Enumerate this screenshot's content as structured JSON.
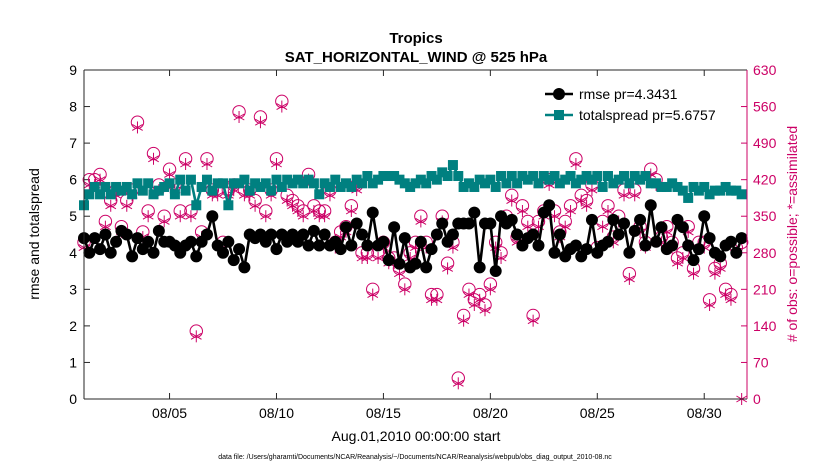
{
  "chart_data": {
    "type": "line",
    "title": "Tropics",
    "subtitle": "SAT_HORIZONTAL_WIND @ 525 hPa",
    "xlabel": "Aug.01,2010 00:00:00 start",
    "ylabel": "rmse and totalspread",
    "y2label": "# of obs: o=possible; *=assimilated",
    "footer": "data file: /Users/gharamti/Documents/NCAR/Reanalysis/~/Documents/NCAR/Reanalysis/webpub/obs_diag_output_2010-08.nc",
    "xlim": [
      1,
      32
    ],
    "ylim": [
      0,
      9
    ],
    "y2lim": [
      0,
      630
    ],
    "x_ticks": [
      5,
      10,
      15,
      20,
      25,
      30
    ],
    "x_tick_labels": [
      "08/05",
      "08/10",
      "08/15",
      "08/20",
      "08/25",
      "08/30"
    ],
    "y_ticks": [
      0,
      1,
      2,
      3,
      4,
      5,
      6,
      7,
      8,
      9
    ],
    "y_tick_labels": [
      "0",
      "1",
      "2",
      "3",
      "4",
      "5",
      "6",
      "7",
      "8",
      "9"
    ],
    "y2_ticks": [
      0,
      70,
      140,
      210,
      280,
      350,
      420,
      490,
      560,
      630
    ],
    "y2_tick_labels": [
      "0",
      "70",
      "140",
      "210",
      "280",
      "350",
      "420",
      "490",
      "560",
      "630"
    ],
    "colors": {
      "rmse": "#000000",
      "totalspread": "#008080",
      "obs": "#cc0066"
    },
    "legend_position": "top-right",
    "series": [
      {
        "name": "rmse pr=4.3431",
        "key": "rmse",
        "x": [
          1.0,
          1.25,
          1.5,
          1.75,
          2.0,
          2.25,
          2.5,
          2.75,
          3.0,
          3.25,
          3.5,
          3.75,
          4.0,
          4.25,
          4.5,
          4.75,
          5.0,
          5.25,
          5.5,
          5.75,
          6.0,
          6.25,
          6.5,
          6.75,
          7.0,
          7.25,
          7.5,
          7.75,
          8.0,
          8.25,
          8.5,
          8.75,
          9.0,
          9.25,
          9.5,
          9.75,
          10.0,
          10.25,
          10.5,
          10.75,
          11.0,
          11.25,
          11.5,
          11.75,
          12.0,
          12.25,
          12.5,
          12.75,
          13.0,
          13.25,
          13.5,
          13.75,
          14.0,
          14.25,
          14.5,
          14.75,
          15.0,
          15.25,
          15.5,
          15.75,
          16.0,
          16.25,
          16.5,
          16.75,
          17.0,
          17.25,
          17.5,
          17.75,
          18.0,
          18.25,
          18.5,
          18.75,
          19.0,
          19.25,
          19.5,
          19.75,
          20.0,
          20.25,
          20.5,
          20.75,
          21.0,
          21.25,
          21.5,
          21.75,
          22.0,
          22.25,
          22.5,
          22.75,
          23.0,
          23.25,
          23.5,
          23.75,
          24.0,
          24.25,
          24.5,
          24.75,
          25.0,
          25.25,
          25.5,
          25.75,
          26.0,
          26.25,
          26.5,
          26.75,
          27.0,
          27.25,
          27.5,
          27.75,
          28.0,
          28.25,
          28.5,
          28.75,
          29.0,
          29.25,
          29.5,
          29.75,
          30.0,
          30.25,
          30.5,
          30.75,
          31.0,
          31.25,
          31.5,
          31.75
        ],
        "values": [
          4.4,
          4.0,
          4.4,
          4.1,
          4.5,
          4.0,
          4.3,
          4.6,
          4.5,
          3.9,
          4.4,
          4.1,
          4.3,
          4.0,
          4.6,
          4.3,
          4.3,
          4.2,
          4.0,
          4.2,
          4.3,
          3.9,
          4.3,
          4.5,
          5.0,
          4.2,
          4.0,
          4.3,
          3.8,
          4.1,
          3.6,
          4.5,
          4.4,
          4.5,
          4.3,
          4.5,
          4.1,
          4.5,
          4.3,
          4.5,
          4.3,
          4.5,
          4.2,
          4.6,
          4.2,
          4.5,
          4.2,
          4.3,
          4.1,
          4.7,
          4.2,
          4.8,
          4.5,
          4.2,
          5.1,
          4.2,
          4.3,
          3.8,
          4.7,
          3.7,
          4.4,
          3.6,
          3.7,
          4.3,
          3.6,
          4.1,
          4.5,
          4.8,
          4.3,
          4.5,
          4.8,
          4.8,
          4.8,
          5.1,
          3.6,
          4.8,
          4.8,
          3.5,
          5.0,
          4.8,
          4.9,
          4.5,
          4.2,
          4.4,
          4.5,
          4.2,
          5.1,
          5.3,
          4.0,
          4.5,
          3.9,
          4.1,
          4.2,
          3.9,
          4.1,
          4.9,
          4.0,
          4.2,
          4.3,
          4.9,
          4.5,
          4.8,
          4.0,
          4.6,
          4.9,
          4.2,
          5.3,
          4.3,
          4.7,
          4.1,
          4.2,
          4.9,
          4.7,
          4.2,
          3.8,
          4.1,
          5.0,
          4.4,
          4.0,
          3.9,
          4.2,
          4.3,
          4.0,
          4.4
        ]
      },
      {
        "name": "totalspread pr=5.6757",
        "key": "totalspread",
        "x": [
          1.0,
          1.25,
          1.5,
          1.75,
          2.0,
          2.25,
          2.5,
          2.75,
          3.0,
          3.25,
          3.5,
          3.75,
          4.0,
          4.25,
          4.5,
          4.75,
          5.0,
          5.25,
          5.5,
          5.75,
          6.0,
          6.25,
          6.5,
          6.75,
          7.0,
          7.25,
          7.5,
          7.75,
          8.0,
          8.25,
          8.5,
          8.75,
          9.0,
          9.25,
          9.5,
          9.75,
          10.0,
          10.25,
          10.5,
          10.75,
          11.0,
          11.25,
          11.5,
          11.75,
          12.0,
          12.25,
          12.5,
          12.75,
          13.0,
          13.25,
          13.5,
          13.75,
          14.0,
          14.25,
          14.5,
          14.75,
          15.0,
          15.25,
          15.5,
          15.75,
          16.0,
          16.25,
          16.5,
          16.75,
          17.0,
          17.25,
          17.5,
          17.75,
          18.0,
          18.25,
          18.5,
          18.75,
          19.0,
          19.25,
          19.5,
          19.75,
          20.0,
          20.25,
          20.5,
          20.75,
          21.0,
          21.25,
          21.5,
          21.75,
          22.0,
          22.25,
          22.5,
          22.75,
          23.0,
          23.25,
          23.5,
          23.75,
          24.0,
          24.25,
          24.5,
          24.75,
          25.0,
          25.25,
          25.5,
          25.75,
          26.0,
          26.25,
          26.5,
          26.75,
          27.0,
          27.25,
          27.5,
          27.75,
          28.0,
          28.25,
          28.5,
          28.75,
          29.0,
          29.25,
          29.5,
          29.75,
          30.0,
          30.25,
          30.5,
          30.75,
          31.0,
          31.25,
          31.5,
          31.75
        ],
        "values": [
          5.3,
          5.6,
          5.8,
          5.6,
          5.8,
          5.6,
          5.8,
          5.7,
          5.8,
          5.6,
          5.9,
          5.7,
          5.9,
          5.6,
          5.7,
          5.8,
          5.9,
          5.6,
          6.0,
          5.7,
          6.0,
          5.3,
          5.8,
          6.0,
          5.7,
          5.9,
          5.9,
          5.3,
          5.9,
          5.9,
          6.0,
          5.7,
          5.9,
          5.8,
          5.9,
          5.7,
          6.0,
          5.8,
          6.0,
          5.9,
          6.0,
          5.9,
          6.0,
          5.9,
          5.6,
          5.9,
          5.8,
          6.0,
          5.8,
          5.9,
          5.8,
          6.0,
          5.9,
          6.1,
          5.9,
          6.0,
          6.1,
          6.1,
          6.1,
          6.0,
          5.9,
          5.8,
          5.9,
          6.0,
          5.9,
          6.1,
          6.0,
          6.2,
          6.1,
          6.4,
          6.1,
          5.8,
          5.9,
          5.8,
          6.0,
          5.9,
          6.0,
          5.8,
          6.1,
          5.9,
          6.1,
          5.9,
          6.1,
          6.0,
          6.1,
          5.9,
          6.1,
          6.0,
          6.1,
          5.9,
          6.0,
          6.1,
          5.9,
          6.0,
          6.1,
          6.0,
          6.1,
          5.8,
          6.1,
          5.9,
          6.0,
          6.1,
          5.9,
          6.1,
          6.0,
          6.1,
          5.9,
          5.9,
          5.8,
          5.8,
          5.9,
          5.8,
          5.7,
          5.5,
          5.8,
          5.7,
          5.8,
          5.6,
          5.7,
          5.7,
          5.8,
          5.7,
          5.7,
          5.6
        ]
      }
    ],
    "obs_possible": {
      "name": "possible",
      "x": [
        1.0,
        1.25,
        1.5,
        1.75,
        2.0,
        2.25,
        2.5,
        2.75,
        3.0,
        3.25,
        3.5,
        3.75,
        4.0,
        4.25,
        4.5,
        4.75,
        5.0,
        5.25,
        5.5,
        5.75,
        6.0,
        6.25,
        6.5,
        6.75,
        7.0,
        7.25,
        7.5,
        7.75,
        8.0,
        8.25,
        8.5,
        8.75,
        9.0,
        9.25,
        9.5,
        9.75,
        10.0,
        10.25,
        10.5,
        10.75,
        11.0,
        11.25,
        11.5,
        11.75,
        12.0,
        12.25,
        12.5,
        12.75,
        13.0,
        13.25,
        13.5,
        13.75,
        14.0,
        14.25,
        14.5,
        14.75,
        15.0,
        15.25,
        15.5,
        15.75,
        16.0,
        16.25,
        16.5,
        16.75,
        17.0,
        17.25,
        17.5,
        17.75,
        18.0,
        18.25,
        18.5,
        18.75,
        19.0,
        19.25,
        19.5,
        19.75,
        20.0,
        20.25,
        20.5,
        20.75,
        21.0,
        21.25,
        21.5,
        21.75,
        22.0,
        22.25,
        22.5,
        22.75,
        23.0,
        23.25,
        23.5,
        23.75,
        24.0,
        24.25,
        24.5,
        24.75,
        25.0,
        25.25,
        25.5,
        25.75,
        26.0,
        26.25,
        26.5,
        26.75,
        27.0,
        27.25,
        27.5,
        27.75,
        28.0,
        28.25,
        28.5,
        28.75,
        29.0,
        29.25,
        29.5,
        29.75,
        30.0,
        30.25,
        30.5,
        30.75,
        31.0,
        31.25,
        31.5,
        31.75
      ],
      "values": [
        300,
        420,
        420,
        430,
        340,
        380,
        400,
        330,
        380,
        400,
        530,
        320,
        360,
        470,
        410,
        350,
        440,
        410,
        360,
        460,
        360,
        130,
        320,
        460,
        400,
        400,
        300,
        400,
        410,
        550,
        400,
        400,
        380,
        540,
        360,
        400,
        460,
        570,
        390,
        380,
        370,
        360,
        430,
        370,
        360,
        360,
        400,
        300,
        320,
        330,
        370,
        410,
        280,
        280,
        210,
        280,
        300,
        270,
        270,
        250,
        220,
        280,
        300,
        350,
        300,
        200,
        200,
        350,
        260,
        300,
        40,
        160,
        210,
        190,
        200,
        180,
        220,
        300,
        280,
        350,
        390,
        310,
        370,
        340,
        160,
        340,
        360,
        420,
        360,
        320,
        340,
        370,
        460,
        390,
        380,
        410,
        290,
        340,
        370,
        310,
        350,
        400,
        240,
        400,
        330,
        300,
        440,
        420,
        310,
        330,
        300,
        270,
        280,
        330,
        250,
        300,
        300,
        190,
        250,
        260,
        210,
        200,
        290,
        300
      ]
    },
    "obs_assimilated": {
      "name": "assimilated",
      "x": [
        1.0,
        1.25,
        1.5,
        1.75,
        2.0,
        2.25,
        2.5,
        2.75,
        3.0,
        3.25,
        3.5,
        3.75,
        4.0,
        4.25,
        4.5,
        4.75,
        5.0,
        5.25,
        5.5,
        5.75,
        6.0,
        6.25,
        6.5,
        6.75,
        7.0,
        7.25,
        7.5,
        7.75,
        8.0,
        8.25,
        8.5,
        8.75,
        9.0,
        9.25,
        9.5,
        9.75,
        10.0,
        10.25,
        10.5,
        10.75,
        11.0,
        11.25,
        11.5,
        11.75,
        12.0,
        12.25,
        12.5,
        12.75,
        13.0,
        13.25,
        13.5,
        13.75,
        14.0,
        14.25,
        14.5,
        14.75,
        15.0,
        15.25,
        15.5,
        15.75,
        16.0,
        16.25,
        16.5,
        16.75,
        17.0,
        17.25,
        17.5,
        17.75,
        18.0,
        18.25,
        18.5,
        18.75,
        19.0,
        19.25,
        19.5,
        19.75,
        20.0,
        20.25,
        20.5,
        20.75,
        21.0,
        21.25,
        21.5,
        21.75,
        22.0,
        22.25,
        22.5,
        22.75,
        23.0,
        23.25,
        23.5,
        23.75,
        24.0,
        24.25,
        24.5,
        24.75,
        25.0,
        25.25,
        25.5,
        25.75,
        26.0,
        26.25,
        26.5,
        26.75,
        27.0,
        27.25,
        27.5,
        27.75,
        28.0,
        28.25,
        28.5,
        28.75,
        29.0,
        29.25,
        29.5,
        29.75,
        30.0,
        30.25,
        30.5,
        30.75,
        31.0,
        31.25,
        31.5,
        31.75
      ],
      "values": [
        290,
        410,
        410,
        420,
        330,
        370,
        390,
        320,
        370,
        390,
        520,
        310,
        350,
        460,
        400,
        340,
        430,
        400,
        350,
        450,
        350,
        120,
        310,
        450,
        390,
        390,
        290,
        390,
        400,
        540,
        390,
        390,
        370,
        530,
        350,
        390,
        450,
        560,
        380,
        370,
        360,
        350,
        420,
        360,
        350,
        350,
        390,
        290,
        310,
        320,
        360,
        400,
        270,
        270,
        200,
        270,
        290,
        260,
        260,
        240,
        210,
        270,
        290,
        340,
        290,
        190,
        190,
        340,
        250,
        290,
        30,
        150,
        200,
        180,
        190,
        170,
        210,
        290,
        270,
        340,
        380,
        300,
        360,
        330,
        150,
        330,
        350,
        410,
        350,
        310,
        330,
        360,
        450,
        380,
        370,
        400,
        280,
        330,
        360,
        300,
        340,
        390,
        230,
        390,
        320,
        290,
        430,
        410,
        300,
        320,
        290,
        260,
        270,
        320,
        240,
        290,
        290,
        180,
        240,
        250,
        200,
        190,
        280,
        0
      ]
    }
  }
}
